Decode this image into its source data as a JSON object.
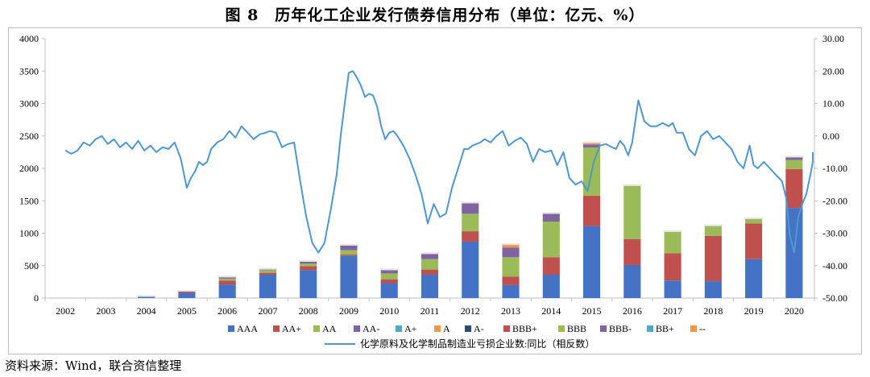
{
  "page": {
    "title": "图 8　历年化工企业发行债券信用分布（单位：亿元、%）",
    "source": "资料来源：Wind，联合资信整理"
  },
  "colors": {
    "AAA": "#4472C4",
    "AA+": "#C0504D",
    "AA": "#9BBB59",
    "AA-": "#8064A2",
    "A+": "#4BACC6",
    "A": "#F79646",
    "A-": "#2C4D75",
    "BBB+": "#C0504D",
    "BBB": "#9BBB59",
    "BBB-": "#8064A2",
    "BB+": "#4BACC6",
    "--": "#F79646",
    "line": "#4F97CE",
    "axis": "#bfbfbf"
  },
  "chart_data": {
    "type": "bar",
    "stacked": true,
    "categories": [
      "2002",
      "2003",
      "2004",
      "2005",
      "2006",
      "2007",
      "2008",
      "2009",
      "2010",
      "2011",
      "2012",
      "2013",
      "2014",
      "2015",
      "2016",
      "2017",
      "2018",
      "2019",
      "2020"
    ],
    "ylim": [
      0,
      4000
    ],
    "y_ticks": [
      "0",
      "500",
      "1000",
      "1500",
      "2000",
      "2500",
      "3000",
      "3500",
      "4000"
    ],
    "y2lim": [
      -50,
      30
    ],
    "y2_ticks": [
      "-50.00",
      "-40.00",
      "-30.00",
      "-20.00",
      "-10.00",
      "0.00",
      "10.00",
      "20.00",
      "30.00"
    ],
    "series": [
      {
        "name": "AAA",
        "values": [
          0,
          0,
          20,
          80,
          210,
          360,
          430,
          650,
          230,
          360,
          870,
          200,
          360,
          1110,
          510,
          270,
          260,
          600,
          1390
        ]
      },
      {
        "name": "AA+",
        "values": [
          0,
          0,
          0,
          20,
          60,
          30,
          60,
          20,
          60,
          80,
          160,
          130,
          270,
          470,
          400,
          420,
          700,
          550,
          600
        ]
      },
      {
        "name": "AA",
        "values": [
          0,
          0,
          0,
          0,
          30,
          40,
          40,
          70,
          90,
          160,
          270,
          300,
          550,
          740,
          820,
          330,
          150,
          70,
          140
        ]
      },
      {
        "name": "AA-",
        "values": [
          0,
          0,
          0,
          0,
          20,
          10,
          30,
          70,
          50,
          80,
          160,
          150,
          120,
          50,
          0,
          0,
          0,
          0,
          40
        ]
      },
      {
        "name": "A+",
        "values": [
          0,
          0,
          0,
          0,
          0,
          0,
          0,
          0,
          0,
          0,
          0,
          0,
          0,
          0,
          0,
          0,
          0,
          0,
          0
        ]
      },
      {
        "name": "A",
        "values": [
          0,
          0,
          0,
          0,
          0,
          0,
          0,
          0,
          0,
          0,
          0,
          40,
          0,
          20,
          0,
          0,
          0,
          0,
          0
        ]
      },
      {
        "name": "A-",
        "values": [
          0,
          0,
          0,
          0,
          0,
          0,
          0,
          0,
          0,
          0,
          0,
          0,
          0,
          0,
          0,
          0,
          0,
          0,
          0
        ]
      },
      {
        "name": "BBB+",
        "values": [
          0,
          0,
          0,
          0,
          0,
          0,
          0,
          0,
          0,
          0,
          0,
          0,
          0,
          0,
          0,
          0,
          0,
          0,
          0
        ]
      },
      {
        "name": "BBB",
        "values": [
          0,
          0,
          0,
          0,
          0,
          0,
          0,
          0,
          0,
          0,
          0,
          0,
          0,
          0,
          0,
          0,
          0,
          0,
          0
        ]
      },
      {
        "name": "BBB-",
        "values": [
          0,
          0,
          0,
          0,
          0,
          0,
          0,
          0,
          0,
          0,
          0,
          0,
          0,
          0,
          0,
          0,
          0,
          0,
          0
        ]
      },
      {
        "name": "BB+",
        "values": [
          0,
          0,
          0,
          0,
          0,
          0,
          0,
          0,
          0,
          0,
          0,
          0,
          0,
          0,
          0,
          0,
          0,
          0,
          0
        ]
      },
      {
        "name": "--",
        "values": [
          0,
          0,
          0,
          0,
          0,
          0,
          0,
          0,
          0,
          0,
          0,
          0,
          0,
          0,
          0,
          0,
          0,
          0,
          0
        ]
      }
    ],
    "line_series": {
      "name": "化学原料及化学制品制造业亏损企业数:同比（相反数）",
      "axis": "right",
      "x": [
        2002.0,
        2002.15,
        2002.3,
        2002.45,
        2002.6,
        2002.75,
        2002.9,
        2003.05,
        2003.2,
        2003.35,
        2003.5,
        2003.65,
        2003.8,
        2003.95,
        2004.1,
        2004.25,
        2004.4,
        2004.55,
        2004.7,
        2004.85,
        2005.0,
        2005.1,
        2005.2,
        2005.3,
        2005.4,
        2005.5,
        2005.6,
        2005.75,
        2005.9,
        2006.05,
        2006.2,
        2006.35,
        2006.5,
        2006.65,
        2006.8,
        2006.95,
        2007.05,
        2007.2,
        2007.35,
        2007.5,
        2007.65,
        2007.8,
        2007.95,
        2008.1,
        2008.25,
        2008.4,
        2008.55,
        2008.7,
        2008.8,
        2008.9,
        2009.0,
        2009.1,
        2009.2,
        2009.3,
        2009.4,
        2009.5,
        2009.6,
        2009.7,
        2009.8,
        2009.9,
        2010.0,
        2010.1,
        2010.2,
        2010.35,
        2010.5,
        2010.65,
        2010.8,
        2010.95,
        2011.1,
        2011.25,
        2011.4,
        2011.55,
        2011.7,
        2011.85,
        2011.95,
        2012.05,
        2012.15,
        2012.25,
        2012.35,
        2012.5,
        2012.65,
        2012.8,
        2012.95,
        2013.1,
        2013.25,
        2013.4,
        2013.55,
        2013.7,
        2013.85,
        2014.0,
        2014.15,
        2014.3,
        2014.45,
        2014.6,
        2014.75,
        2014.9,
        2015.05,
        2015.2,
        2015.35,
        2015.5,
        2015.6,
        2015.7,
        2015.8,
        2015.9,
        2016.0,
        2016.15,
        2016.3,
        2016.45,
        2016.6,
        2016.75,
        2016.9,
        2017.0,
        2017.1,
        2017.25,
        2017.4,
        2017.55,
        2017.7,
        2017.85,
        2018.0,
        2018.15,
        2018.3,
        2018.45,
        2018.6,
        2018.75,
        2018.9,
        2019.0,
        2019.1,
        2019.25,
        2019.4,
        2019.55,
        2019.7,
        2019.8,
        2019.9,
        2020.0,
        2020.1,
        2020.2,
        2020.3,
        2020.4,
        2020.5,
        2020.6
      ],
      "values": [
        -4.5,
        -5.5,
        -4.5,
        -2,
        -3,
        -1,
        0,
        -2.5,
        -1,
        -3.5,
        -2,
        -4,
        -1.5,
        -4.5,
        -3,
        -5,
        -3.5,
        -4,
        -2,
        -7,
        -16,
        -13,
        -11,
        -8,
        -9,
        -8,
        -4,
        -2,
        -1,
        1.5,
        -0.5,
        3,
        1,
        -1,
        0.5,
        1,
        1.5,
        1,
        -3.5,
        -2.5,
        -2,
        -14,
        -25,
        -33,
        -36,
        -33,
        -23,
        -12,
        0,
        10,
        19.5,
        20,
        18,
        15.5,
        12,
        13,
        12.5,
        9,
        3,
        -1,
        1,
        1.5,
        0,
        -3,
        -7,
        -12,
        -18,
        -27,
        -21,
        -25,
        -24,
        -16,
        -10,
        -4,
        -4,
        -3,
        -2.5,
        -2,
        -1,
        -2,
        0,
        1.5,
        -3,
        -1.5,
        -0.5,
        -2.5,
        -8,
        -4,
        -5,
        -4.5,
        -9,
        -5,
        -13,
        -15,
        -14,
        -17,
        -8,
        -3,
        -2.5,
        -3.5,
        -4,
        -1.5,
        -3,
        -6,
        -2,
        11,
        4.5,
        3,
        3,
        4,
        3,
        4,
        1,
        1,
        -4,
        -6,
        0,
        1.5,
        -1,
        0,
        -2,
        -4,
        -8,
        -10,
        -3,
        -9,
        -10,
        -8,
        -10,
        -12,
        -14,
        -19,
        -31,
        -36,
        -25,
        -21,
        -18,
        -12,
        -8,
        -5
      ]
    },
    "legend": [
      "AAA",
      "AA+",
      "AA",
      "AA-",
      "A+",
      "A",
      "A-",
      "BBB+",
      "BBB",
      "BBB-",
      "BB+",
      "--"
    ],
    "legend_position": "bottom"
  }
}
